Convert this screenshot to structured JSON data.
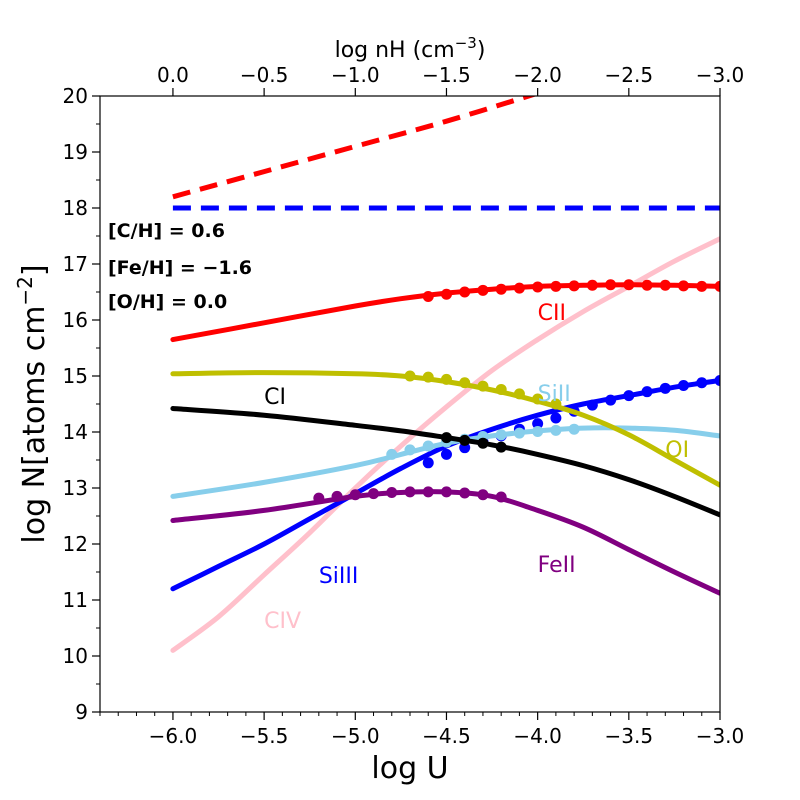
{
  "chart_data": {
    "type": "line",
    "xlabel": "log U",
    "ylabel": "log N[atoms cm",
    "ylabel_sup": "−2",
    "ylabel_close": "]",
    "top_xlabel": "log nH (cm",
    "top_xlabel_sup": "−3",
    "top_xlabel_close": ")",
    "xlim": [
      -6.4,
      -3.0
    ],
    "ylim": [
      9,
      20
    ],
    "x_ticks": [
      -6.0,
      -5.5,
      -5.0,
      -4.5,
      -4.0,
      -3.5,
      -3.0
    ],
    "x_tick_labels": [
      "−6.0",
      "−5.5",
      "−5.0",
      "−4.5",
      "−4.0",
      "−3.5",
      "−3.0"
    ],
    "y_ticks": [
      9,
      10,
      11,
      12,
      13,
      14,
      15,
      16,
      17,
      18,
      19,
      20
    ],
    "y_tick_labels": [
      "9",
      "10",
      "11",
      "12",
      "13",
      "14",
      "15",
      "16",
      "17",
      "18",
      "19",
      "20"
    ],
    "top_ticks": [
      -6.0,
      -5.5,
      -5.0,
      -4.5,
      -4.0,
      -3.5,
      -3.0
    ],
    "top_tick_labels": [
      "0.0",
      "−0.5",
      "−1.0",
      "−1.5",
      "−2.0",
      "−2.5",
      "−3.0"
    ],
    "grid": false,
    "annotations": [
      "[C/H] = 0.6",
      "[Fe/H] = −1.6",
      "[O/H] = 0.0"
    ],
    "series": [
      {
        "name": "CIV",
        "color": "#ffc0cb",
        "dashed": false,
        "x": [
          -6.0,
          -5.75,
          -5.5,
          -5.25,
          -5.0,
          -4.75,
          -4.5,
          -4.25,
          -4.0,
          -3.75,
          -3.5,
          -3.25,
          -3.0
        ],
        "y": [
          10.1,
          10.7,
          11.45,
          12.2,
          13.0,
          13.75,
          14.45,
          15.1,
          15.65,
          16.15,
          16.6,
          17.05,
          17.45
        ],
        "dots_x": [],
        "dots_y": [],
        "label_x": -5.5,
        "label_y": 10.5
      },
      {
        "name": "SiIII",
        "color": "#0000ff",
        "dashed": false,
        "x": [
          -6.0,
          -5.75,
          -5.5,
          -5.25,
          -5.0,
          -4.75,
          -4.5,
          -4.25,
          -4.0,
          -3.75,
          -3.5,
          -3.25,
          -3.0
        ],
        "y": [
          11.2,
          11.6,
          12.0,
          12.45,
          12.9,
          13.35,
          13.75,
          14.05,
          14.3,
          14.5,
          14.65,
          14.8,
          14.92
        ],
        "dots_x": [
          -4.6,
          -4.5,
          -4.4,
          -4.3,
          -4.2,
          -4.1,
          -4.0,
          -3.9,
          -3.8,
          -3.7,
          -3.6,
          -3.5,
          -3.4,
          -3.3,
          -3.2,
          -3.1,
          -3.0
        ],
        "dots_y": [
          13.45,
          13.6,
          13.72,
          13.83,
          13.93,
          14.05,
          14.15,
          14.25,
          14.37,
          14.48,
          14.57,
          14.65,
          14.72,
          14.78,
          14.83,
          14.88,
          14.92
        ],
        "label_x": -5.2,
        "label_y": 11.3
      },
      {
        "name": "FeII",
        "color": "#800080",
        "dashed": false,
        "x": [
          -6.0,
          -5.5,
          -5.0,
          -4.75,
          -4.5,
          -4.25,
          -4.0,
          -3.75,
          -3.5,
          -3.25,
          -3.0
        ],
        "y": [
          12.42,
          12.6,
          12.85,
          12.92,
          12.93,
          12.85,
          12.6,
          12.3,
          11.9,
          11.5,
          11.12
        ],
        "dots_x": [
          -5.2,
          -5.1,
          -5.0,
          -4.9,
          -4.8,
          -4.7,
          -4.6,
          -4.5,
          -4.4,
          -4.3,
          -4.2
        ],
        "dots_y": [
          12.82,
          12.85,
          12.88,
          12.9,
          12.92,
          12.93,
          12.93,
          12.93,
          12.91,
          12.88,
          12.84
        ],
        "label_x": -4.0,
        "label_y": 11.5
      },
      {
        "name": "SiII",
        "color": "#87ceeb",
        "dashed": false,
        "x": [
          -6.0,
          -5.5,
          -5.0,
          -4.75,
          -4.5,
          -4.25,
          -4.0,
          -3.75,
          -3.5,
          -3.25,
          -3.0
        ],
        "y": [
          12.85,
          13.1,
          13.4,
          13.6,
          13.8,
          13.93,
          14.02,
          14.07,
          14.07,
          14.03,
          13.93
        ],
        "dots_x": [
          -4.8,
          -4.7,
          -4.6,
          -4.5,
          -4.4,
          -4.3,
          -4.2,
          -4.1,
          -4.0,
          -3.9,
          -3.8
        ],
        "dots_y": [
          13.6,
          13.68,
          13.75,
          13.82,
          13.87,
          13.92,
          13.95,
          13.98,
          14.01,
          14.03,
          14.05
        ],
        "label_x": -4.0,
        "label_y": 14.55
      },
      {
        "name": "CI",
        "color": "#000000",
        "dashed": false,
        "x": [
          -6.0,
          -5.5,
          -5.0,
          -4.75,
          -4.5,
          -4.25,
          -4.0,
          -3.75,
          -3.5,
          -3.25,
          -3.0
        ],
        "y": [
          14.42,
          14.3,
          14.12,
          14.02,
          13.9,
          13.77,
          13.6,
          13.4,
          13.15,
          12.85,
          12.52
        ],
        "dots_x": [
          -4.5,
          -4.4,
          -4.3,
          -4.2
        ],
        "dots_y": [
          13.9,
          13.85,
          13.8,
          13.73
        ],
        "label_x": -5.5,
        "label_y": 14.5
      },
      {
        "name": "OI",
        "color": "#bfbf00",
        "dashed": false,
        "x": [
          -6.0,
          -5.5,
          -5.0,
          -4.75,
          -4.5,
          -4.25,
          -4.0,
          -3.75,
          -3.5,
          -3.25,
          -3.0
        ],
        "y": [
          15.04,
          15.06,
          15.04,
          15.0,
          14.9,
          14.75,
          14.55,
          14.3,
          13.95,
          13.5,
          13.05
        ],
        "dots_x": [
          -4.7,
          -4.6,
          -4.5,
          -4.4,
          -4.3,
          -4.2,
          -4.1,
          -4.0,
          -3.9
        ],
        "dots_y": [
          15.0,
          14.98,
          14.94,
          14.88,
          14.82,
          14.76,
          14.68,
          14.59,
          14.5
        ],
        "label_x": -3.3,
        "label_y": 13.55
      },
      {
        "name": "CII",
        "color": "#ff0000",
        "dashed": false,
        "x": [
          -6.0,
          -5.5,
          -5.0,
          -4.75,
          -4.5,
          -4.25,
          -4.0,
          -3.75,
          -3.5,
          -3.25,
          -3.0
        ],
        "y": [
          15.65,
          15.95,
          16.25,
          16.38,
          16.48,
          16.55,
          16.6,
          16.62,
          16.63,
          16.62,
          16.6
        ],
        "dots_x": [
          -4.6,
          -4.5,
          -4.4,
          -4.3,
          -4.2,
          -4.1,
          -4.0,
          -3.9,
          -3.8,
          -3.7,
          -3.6,
          -3.5,
          -3.4,
          -3.3,
          -3.2,
          -3.1,
          -3.0
        ],
        "dots_y": [
          16.42,
          16.46,
          16.5,
          16.53,
          16.55,
          16.57,
          16.59,
          16.6,
          16.61,
          16.62,
          16.63,
          16.63,
          16.62,
          16.62,
          16.61,
          16.6,
          16.6
        ],
        "label_x": -4.0,
        "label_y": 16.0
      },
      {
        "name": "",
        "color": "#ff0000",
        "dashed": true,
        "x": [
          -6.0,
          -5.5,
          -5.0,
          -4.5,
          -4.0
        ],
        "y": [
          18.2,
          18.65,
          19.1,
          19.55,
          20.05
        ],
        "dots_x": [],
        "dots_y": []
      },
      {
        "name": "",
        "color": "#0000ff",
        "dashed": true,
        "x": [
          -6.0,
          -3.0
        ],
        "y": [
          18.0,
          18.0
        ],
        "dots_x": [],
        "dots_y": []
      }
    ]
  }
}
